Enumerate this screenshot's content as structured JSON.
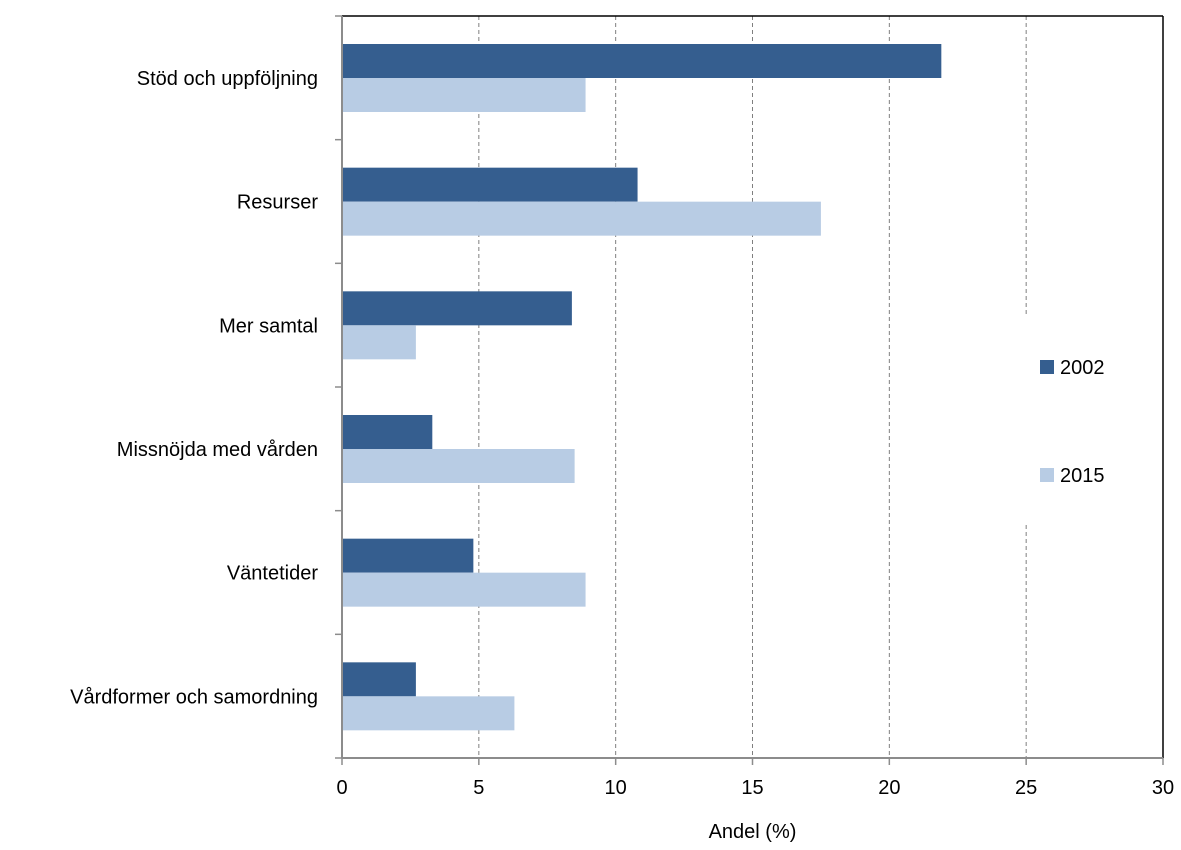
{
  "chart_data": {
    "type": "bar",
    "orientation": "horizontal",
    "categories": [
      "Stöd och uppföljning",
      "Resurser",
      "Mer samtal",
      "Missnöjda med vården",
      "Väntetider",
      "Vårdformer och samordning"
    ],
    "series": [
      {
        "name": "2002",
        "color": "#355E8F",
        "values": [
          21.9,
          10.8,
          8.4,
          3.3,
          4.8,
          2.7
        ]
      },
      {
        "name": "2015",
        "color": "#B8CCE4",
        "values": [
          8.9,
          17.5,
          2.7,
          8.5,
          8.9,
          6.3
        ]
      }
    ],
    "xlabel": "Andel (%)",
    "ylabel": "",
    "title": "",
    "xlim": [
      0,
      30
    ],
    "x_ticks": [
      0,
      5,
      10,
      15,
      20,
      25,
      30
    ],
    "grid": "vertical dashed",
    "legend_position": "right"
  }
}
